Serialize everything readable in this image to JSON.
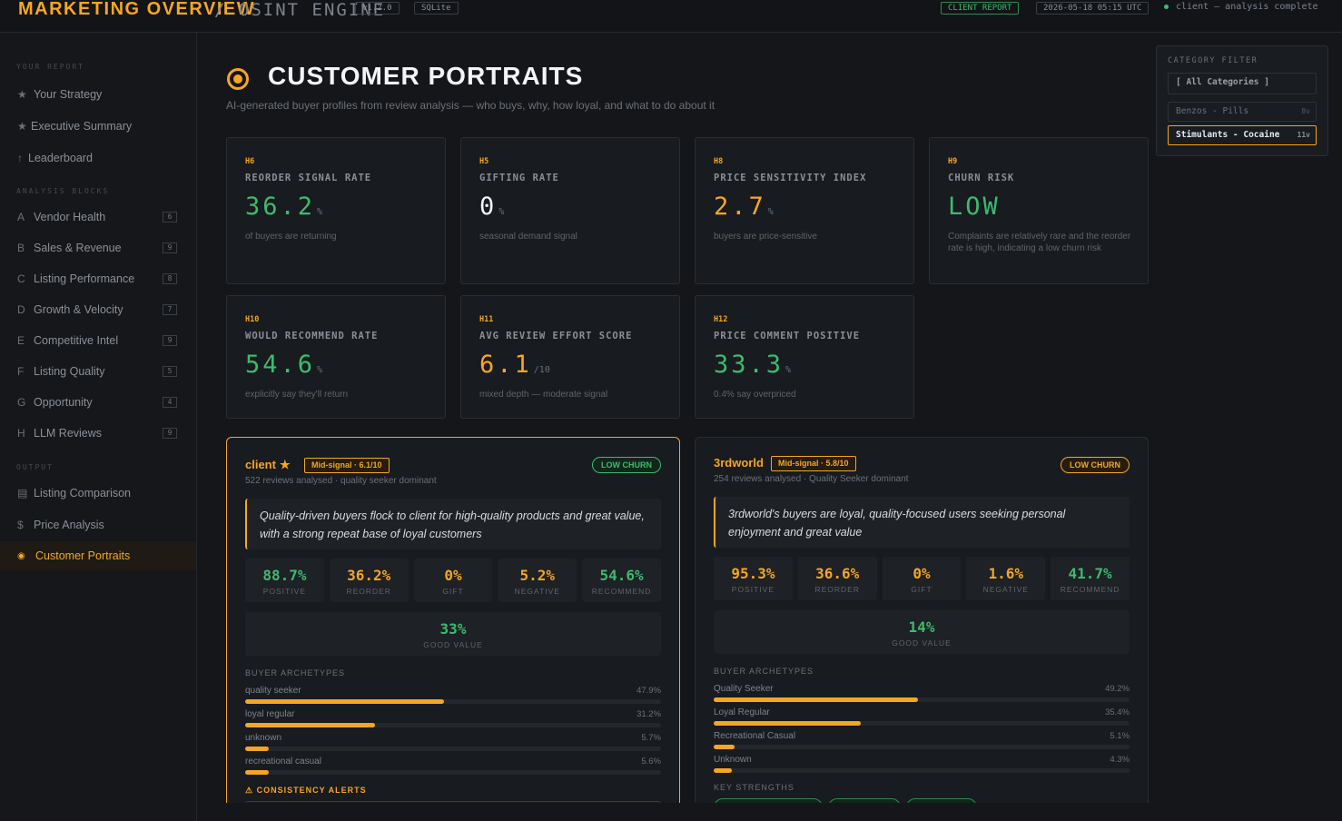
{
  "topbar": {
    "brand": "MARKETING OVERVIEW",
    "engine": "/ OSINT ENGINE",
    "version": "v1.2.0",
    "db": "SQLite",
    "report_badge": "CLIENT REPORT",
    "timestamp": "2026-05-18 05:15 UTC",
    "status": "client – analysis complete"
  },
  "sidebar": {
    "sections": [
      "YOUR REPORT",
      "ANALYSIS BLOCKS",
      "OUTPUT"
    ],
    "report_items": [
      {
        "icon": "★",
        "label": "Your Strategy"
      },
      {
        "icon": "★",
        "label": "Executive Summary"
      },
      {
        "icon": "↑",
        "label": "Leaderboard"
      }
    ],
    "blocks": [
      {
        "icon": "A",
        "label": "Vendor Health",
        "count": "6"
      },
      {
        "icon": "B",
        "label": "Sales & Revenue",
        "count": "9"
      },
      {
        "icon": "C",
        "label": "Listing Performance",
        "count": "8"
      },
      {
        "icon": "D",
        "label": "Growth & Velocity",
        "count": "7"
      },
      {
        "icon": "E",
        "label": "Competitive Intel",
        "count": "9"
      },
      {
        "icon": "F",
        "label": "Listing Quality",
        "count": "5"
      },
      {
        "icon": "G",
        "label": "Opportunity",
        "count": "4"
      },
      {
        "icon": "H",
        "label": "LLM Reviews",
        "count": "9"
      }
    ],
    "output_items": [
      {
        "icon": "▤",
        "label": "Listing Comparison"
      },
      {
        "icon": "$",
        "label": "Price Analysis"
      },
      {
        "icon": "◉",
        "label": "Customer Portraits"
      }
    ]
  },
  "category_filter": {
    "label": "CATEGORY FILTER",
    "all": "[ All Categories ]",
    "options": [
      {
        "label": "Benzos - Pills",
        "count": "8v"
      },
      {
        "label": "Stimulants - Cocaine",
        "count": "11v"
      }
    ]
  },
  "page": {
    "title": "CUSTOMER PORTRAITS",
    "subtitle": "AI-generated buyer profiles from review analysis — who buys, why, how loyal, and what to do about it"
  },
  "metrics": [
    {
      "code": "H6",
      "title": "REORDER SIGNAL RATE",
      "value": "36.2",
      "unit": "%",
      "note": "of buyers are returning",
      "color": "#3dbb6e"
    },
    {
      "code": "H5",
      "title": "GIFTING RATE",
      "value": "0",
      "unit": "%",
      "note": "seasonal demand signal",
      "color": "#f2f4f7"
    },
    {
      "code": "H8",
      "title": "PRICE SENSITIVITY INDEX",
      "value": "2.7",
      "unit": "%",
      "note": "buyers are price-sensitive",
      "color": "#f5a623"
    },
    {
      "code": "H9",
      "title": "CHURN RISK",
      "value": "LOW",
      "unit": "",
      "note": "Complaints are relatively rare and the reorder rate is high, indicating a low churn risk",
      "color": "#3dbb6e"
    },
    {
      "code": "H10",
      "title": "WOULD RECOMMEND RATE",
      "value": "54.6",
      "unit": "%",
      "note": "explicitly say they'll return",
      "color": "#3dbb6e"
    },
    {
      "code": "H11",
      "title": "AVG REVIEW EFFORT SCORE",
      "value": "6.1",
      "unit": "/10",
      "note": "mixed depth — moderate signal",
      "color": "#f5a623"
    },
    {
      "code": "H12",
      "title": "PRICE COMMENT POSITIVE",
      "value": "33.3",
      "unit": "%",
      "note": "0.4% say overpriced",
      "color": "#3dbb6e"
    }
  ],
  "vendors": [
    {
      "name": "client",
      "star": "★",
      "badge": "Mid-signal · 6.1/10",
      "meta": "522 reviews analysed · quality seeker dominant",
      "churn": "LOW CHURN",
      "quote": "Quality-driven buyers flock to client for high-quality products and great value, with a strong repeat base of loyal customers",
      "stats": [
        {
          "value": "88.7%",
          "label": "POSITIVE",
          "color": "#3dbb6e"
        },
        {
          "value": "36.2%",
          "label": "REORDER",
          "color": "#f5a623"
        },
        {
          "value": "0%",
          "label": "GIFT",
          "color": "#f5a623"
        },
        {
          "value": "5.2%",
          "label": "NEGATIVE",
          "color": "#f5a623"
        },
        {
          "value": "54.6%",
          "label": "RECOMMEND",
          "color": "#3dbb6e"
        }
      ],
      "good_value": {
        "value": "33%",
        "label": "GOOD VALUE"
      },
      "archetypes_label": "BUYER ARCHETYPES",
      "archetypes": [
        {
          "name": "quality seeker",
          "pct": "47.9%",
          "level": 0.479
        },
        {
          "name": "loyal regular",
          "pct": "31.2%",
          "level": 0.312
        },
        {
          "name": "unknown",
          "pct": "5.7%",
          "level": 0.057
        },
        {
          "name": "recreational casual",
          "pct": "5.6%",
          "level": 0.056
        }
      ],
      "alerts_label": "⚠ CONSISTENCY ALERTS"
    },
    {
      "name": "3rdworld",
      "badge": "Mid-signal · 5.8/10",
      "meta": "254 reviews analysed · Quality Seeker dominant",
      "churn": "LOW CHURN",
      "quote": "3rdworld's buyers are loyal, quality-focused users seeking personal enjoyment and great value",
      "stats": [
        {
          "value": "95.3%",
          "label": "POSITIVE",
          "color": "#f5a623"
        },
        {
          "value": "36.6%",
          "label": "REORDER",
          "color": "#f5a623"
        },
        {
          "value": "0%",
          "label": "GIFT",
          "color": "#f5a623"
        },
        {
          "value": "1.6%",
          "label": "NEGATIVE",
          "color": "#f5a623"
        },
        {
          "value": "41.7%",
          "label": "RECOMMEND",
          "color": "#3dbb6e"
        }
      ],
      "good_value": {
        "value": "14%",
        "label": "GOOD VALUE"
      },
      "archetypes_label": "BUYER ARCHETYPES",
      "archetypes": [
        {
          "name": "Quality Seeker",
          "pct": "49.2%",
          "level": 0.492
        },
        {
          "name": "Loyal Regular",
          "pct": "35.4%",
          "level": 0.354
        },
        {
          "name": "Recreational Casual",
          "pct": "5.1%",
          "level": 0.051
        },
        {
          "name": "Unknown",
          "pct": "4.3%",
          "level": 0.043
        }
      ],
      "strengths_label": "KEY STRENGTHS"
    }
  ]
}
